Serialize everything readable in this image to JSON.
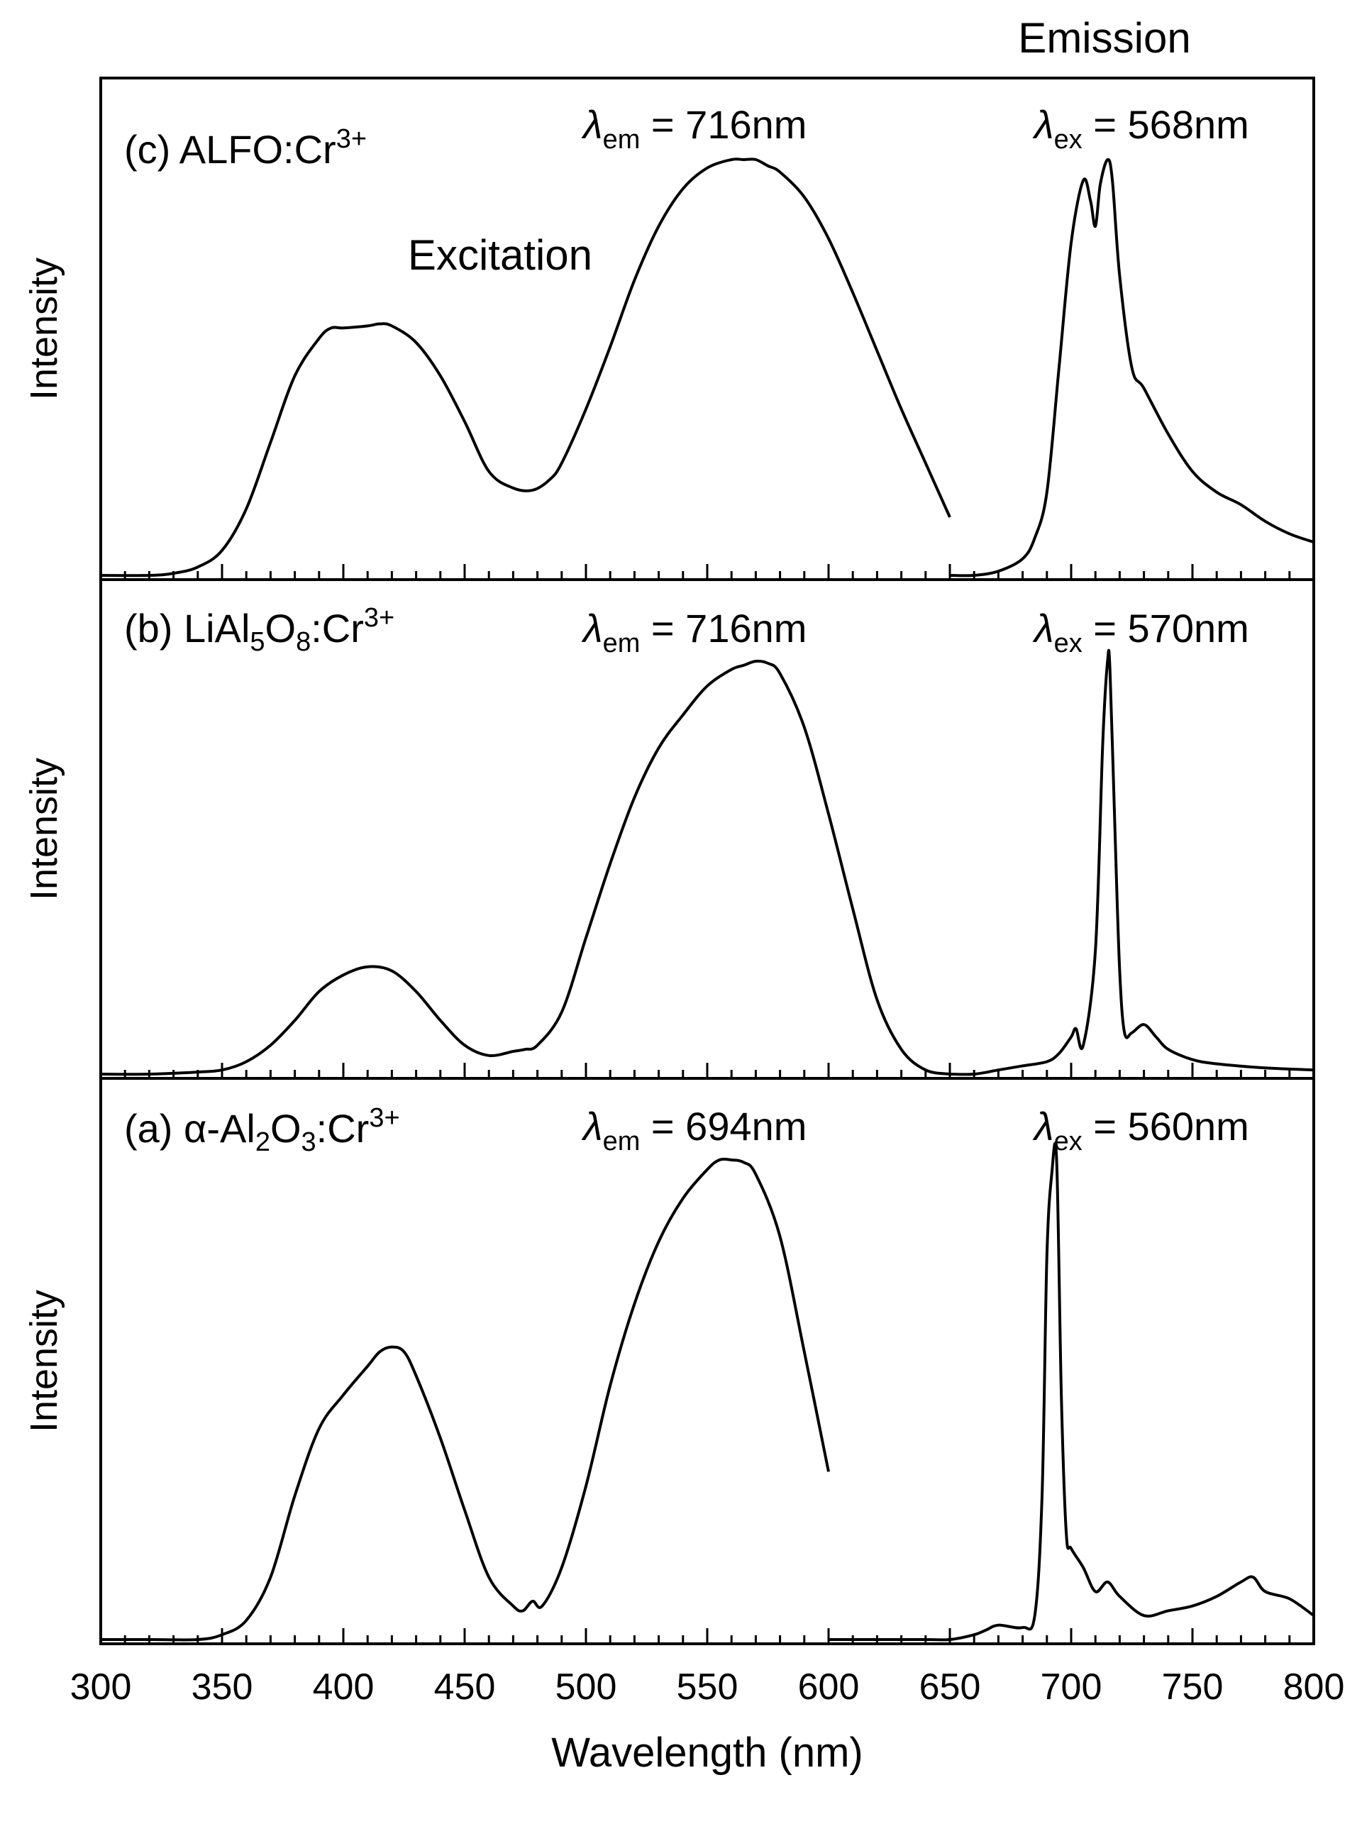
{
  "chart_data": {
    "type": "line",
    "xlabel": "Wavelength (nm)",
    "ylabel": "Intensity",
    "xlim": [
      300,
      800
    ],
    "ylim": [
      0,
      1
    ],
    "x_ticks": [
      300,
      350,
      400,
      450,
      500,
      550,
      600,
      650,
      700,
      750,
      800
    ],
    "headers": {
      "excitation": "Excitation",
      "emission": "Emission"
    },
    "panels": [
      {
        "id": "c",
        "label_parts": [
          {
            "text": "(c) ALFO:Cr",
            "style": "normal"
          },
          {
            "text": "3+",
            "style": "sup"
          }
        ],
        "lambda_em": {
          "symbol": "λ",
          "sub": "em",
          "text": " = 716nm"
        },
        "lambda_ex": {
          "symbol": "λ",
          "sub": "ex",
          "text": " = 568nm"
        },
        "series": [
          {
            "name": "Excitation",
            "x": [
              300,
              320,
              330,
              340,
              350,
              360,
              370,
              380,
              390,
              395,
              400,
              410,
              415,
              420,
              430,
              440,
              450,
              460,
              470,
              478,
              485,
              490,
              500,
              510,
              520,
              530,
              540,
              550,
              560,
              565,
              570,
              575,
              580,
              590,
              600,
              610,
              620,
              630,
              640,
              650
            ],
            "y": [
              0.0,
              0.0,
              0.005,
              0.02,
              0.06,
              0.16,
              0.32,
              0.48,
              0.57,
              0.595,
              0.595,
              0.6,
              0.605,
              0.6,
              0.56,
              0.48,
              0.37,
              0.25,
              0.21,
              0.205,
              0.23,
              0.27,
              0.4,
              0.55,
              0.71,
              0.84,
              0.93,
              0.98,
              1.0,
              1.0,
              1.0,
              0.985,
              0.97,
              0.91,
              0.81,
              0.68,
              0.54,
              0.4,
              0.27,
              0.14
            ]
          },
          {
            "name": "Emission",
            "x": [
              650,
              660,
              670,
              680,
              685,
              690,
              695,
              700,
              705,
              708,
              710,
              712,
              715,
              717,
              720,
              725,
              730,
              740,
              750,
              760,
              770,
              780,
              790,
              800
            ],
            "y": [
              0.0,
              0.0,
              0.01,
              0.04,
              0.09,
              0.2,
              0.5,
              0.8,
              0.95,
              0.9,
              0.84,
              0.94,
              1.0,
              0.95,
              0.72,
              0.5,
              0.45,
              0.34,
              0.25,
              0.2,
              0.17,
              0.13,
              0.1,
              0.08
            ]
          }
        ]
      },
      {
        "id": "b",
        "label_parts": [
          {
            "text": "(b) LiAl",
            "style": "normal"
          },
          {
            "text": "5",
            "style": "sub"
          },
          {
            "text": "O",
            "style": "normal"
          },
          {
            "text": "8",
            "style": "sub"
          },
          {
            "text": ":Cr",
            "style": "normal"
          },
          {
            "text": "3+",
            "style": "sup"
          }
        ],
        "lambda_em": {
          "symbol": "λ",
          "sub": "em",
          "text": " = 716nm"
        },
        "lambda_ex": {
          "symbol": "λ",
          "sub": "ex",
          "text": " = 570nm"
        },
        "series": [
          {
            "name": "Excitation",
            "x": [
              300,
              320,
              340,
              350,
              360,
              370,
              380,
              390,
              400,
              410,
              420,
              430,
              440,
              450,
              460,
              470,
              475,
              480,
              490,
              500,
              510,
              520,
              530,
              540,
              550,
              560,
              565,
              570,
              575,
              580,
              590,
              600,
              610,
              620,
              630,
              640,
              650
            ],
            "y": [
              0.0,
              0.0,
              0.005,
              0.01,
              0.03,
              0.07,
              0.13,
              0.2,
              0.24,
              0.26,
              0.25,
              0.2,
              0.13,
              0.07,
              0.045,
              0.055,
              0.06,
              0.07,
              0.15,
              0.33,
              0.51,
              0.67,
              0.79,
              0.87,
              0.94,
              0.98,
              0.99,
              1.0,
              0.995,
              0.97,
              0.84,
              0.63,
              0.4,
              0.18,
              0.06,
              0.01,
              0.0
            ]
          },
          {
            "name": "Emission",
            "x": [
              650,
              660,
              670,
              680,
              690,
              695,
              700,
              702,
              705,
              710,
              713,
              715,
              716,
              718,
              720,
              722,
              725,
              730,
              735,
              740,
              750,
              760,
              780,
              800
            ],
            "y": [
              0.0,
              0.0,
              0.01,
              0.02,
              0.03,
              0.05,
              0.09,
              0.11,
              0.07,
              0.3,
              0.8,
              1.0,
              0.98,
              0.6,
              0.25,
              0.1,
              0.1,
              0.12,
              0.09,
              0.06,
              0.035,
              0.025,
              0.015,
              0.01
            ]
          }
        ]
      },
      {
        "id": "a",
        "label_parts": [
          {
            "text": "(a) α-Al",
            "style": "normal"
          },
          {
            "text": "2",
            "style": "sub"
          },
          {
            "text": "O",
            "style": "normal"
          },
          {
            "text": "3",
            "style": "sub"
          },
          {
            "text": ":Cr",
            "style": "normal"
          },
          {
            "text": "3+",
            "style": "sup"
          }
        ],
        "lambda_em": {
          "symbol": "λ",
          "sub": "em",
          "text": " = 694nm"
        },
        "lambda_ex": {
          "symbol": "λ",
          "sub": "ex",
          "text": " = 560nm"
        },
        "series": [
          {
            "name": "Excitation",
            "x": [
              300,
              320,
              340,
              350,
              360,
              370,
              380,
              390,
              400,
              410,
              415,
              420,
              425,
              430,
              440,
              450,
              460,
              470,
              474,
              478,
              482,
              490,
              500,
              510,
              520,
              530,
              540,
              550,
              555,
              560,
              565,
              570,
              580,
              590,
              600
            ],
            "y": [
              0.0,
              0.0,
              0.0,
              0.01,
              0.04,
              0.13,
              0.3,
              0.44,
              0.51,
              0.57,
              0.6,
              0.61,
              0.6,
              0.55,
              0.42,
              0.27,
              0.13,
              0.07,
              0.06,
              0.08,
              0.07,
              0.15,
              0.32,
              0.53,
              0.7,
              0.83,
              0.92,
              0.98,
              1.0,
              1.0,
              0.995,
              0.97,
              0.84,
              0.6,
              0.35
            ]
          },
          {
            "name": "Emission",
            "x": [
              600,
              620,
              640,
              650,
              660,
              665,
              670,
              680,
              685,
              688,
              690,
              692,
              694,
              696,
              698,
              700,
              705,
              710,
              715,
              720,
              730,
              740,
              750,
              760,
              770,
              775,
              780,
              790,
              800
            ],
            "y": [
              0.0,
              0.0,
              0.0,
              0.0,
              0.01,
              0.02,
              0.03,
              0.025,
              0.05,
              0.3,
              0.8,
              0.97,
              1.0,
              0.5,
              0.22,
              0.19,
              0.15,
              0.1,
              0.12,
              0.09,
              0.05,
              0.06,
              0.07,
              0.09,
              0.12,
              0.13,
              0.1,
              0.085,
              0.05
            ]
          }
        ]
      }
    ]
  }
}
